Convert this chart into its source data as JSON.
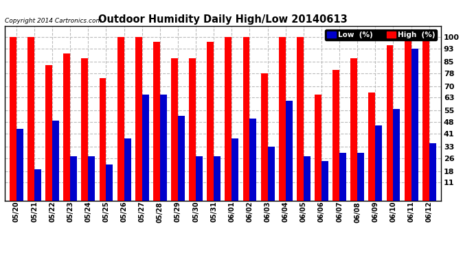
{
  "title": "Outdoor Humidity Daily High/Low 20140613",
  "copyright": "Copyright 2014 Cartronics.com",
  "dates": [
    "05/20",
    "05/21",
    "05/22",
    "05/23",
    "05/24",
    "05/25",
    "05/26",
    "05/27",
    "05/28",
    "05/29",
    "05/30",
    "05/31",
    "06/01",
    "06/02",
    "06/03",
    "06/04",
    "06/05",
    "06/06",
    "06/07",
    "06/08",
    "06/09",
    "06/10",
    "06/11",
    "06/12"
  ],
  "high": [
    100,
    100,
    83,
    90,
    87,
    75,
    100,
    100,
    97,
    87,
    87,
    97,
    100,
    100,
    78,
    100,
    100,
    65,
    80,
    87,
    66,
    95,
    100,
    100
  ],
  "low": [
    44,
    19,
    49,
    27,
    27,
    22,
    38,
    65,
    65,
    52,
    27,
    27,
    38,
    50,
    33,
    61,
    27,
    24,
    29,
    29,
    46,
    56,
    93,
    35
  ],
  "y_ticks": [
    11,
    18,
    26,
    33,
    41,
    48,
    55,
    63,
    70,
    78,
    85,
    93,
    100
  ],
  "ylim": [
    0,
    107
  ],
  "bar_width": 0.38,
  "high_color": "#FF0000",
  "low_color": "#0000CC",
  "bg_color": "#FFFFFF",
  "grid_color": "#BBBBBB",
  "legend_low_label": "Low  (%)",
  "legend_high_label": "High  (%)"
}
